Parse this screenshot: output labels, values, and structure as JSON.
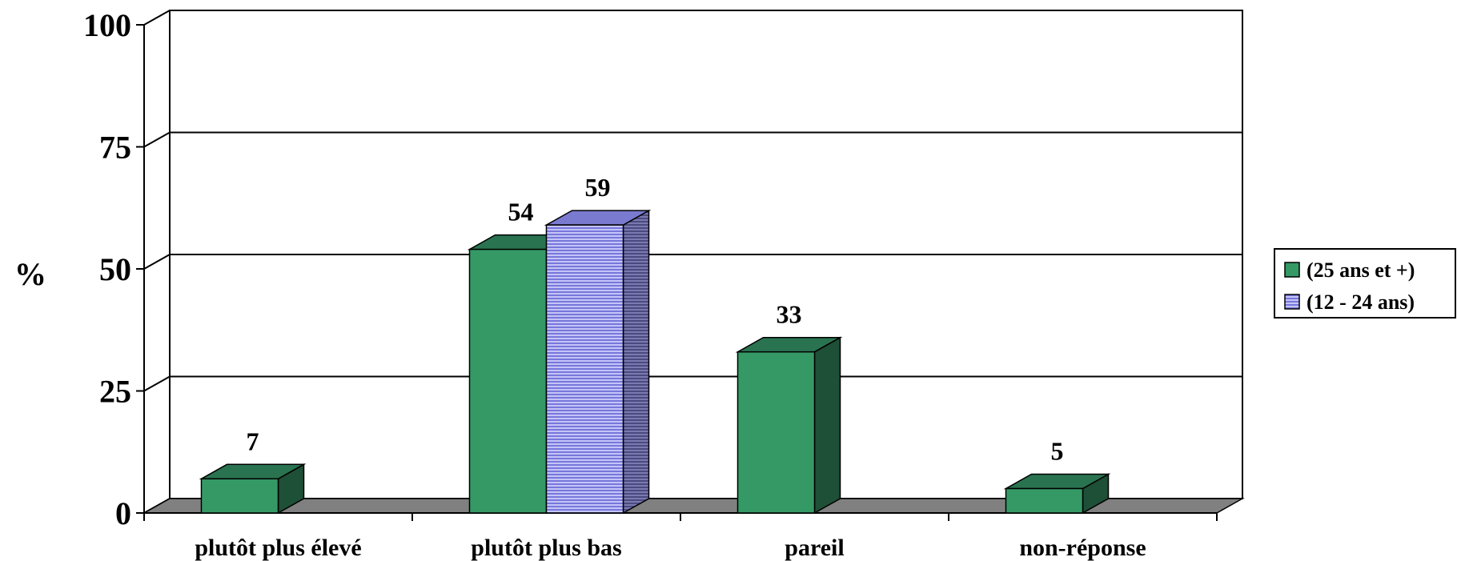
{
  "chart_data": {
    "type": "bar",
    "categories": [
      "plutôt plus élevé",
      "plutôt plus bas",
      "pareil",
      "non-réponse"
    ],
    "series": [
      {
        "name": "(25 ans et +)",
        "values": [
          7,
          54,
          33,
          5
        ],
        "color": "#359966",
        "side_color": "#1e4f37",
        "top_color": "#2a7350"
      },
      {
        "name": "(12 - 24 ans)",
        "values": [
          null,
          59,
          null,
          null
        ],
        "color": "#9999ee",
        "side_color": "#5a5a8a",
        "top_color": "#7a7ad0"
      }
    ],
    "ylabel": "%",
    "ylim": [
      0,
      100
    ],
    "yticks": [
      0,
      25,
      50,
      75,
      100
    ],
    "grid": true,
    "three_d": true,
    "floor_color": "#808080",
    "legend_position": "right",
    "data_labels": true
  }
}
